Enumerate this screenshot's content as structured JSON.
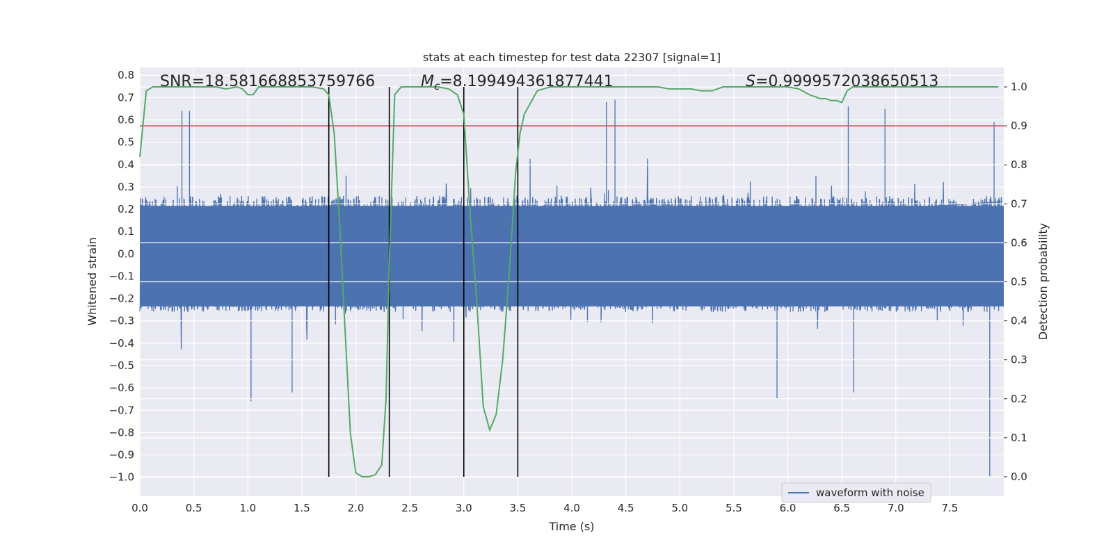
{
  "chart_data": {
    "type": "line",
    "title": "stats at each timestep for test data 22307 [signal=1]",
    "xlabel": "Time (s)",
    "ylabel_left": "Whitened strain",
    "ylabel_right": "Detection probability",
    "xlim": [
      0.0,
      8.0
    ],
    "ylim_left": [
      -1.085,
      0.835
    ],
    "ylim_right": [
      -0.05,
      1.05
    ],
    "x_ticks": [
      "0.0",
      "0.5",
      "1.0",
      "1.5",
      "2.0",
      "2.5",
      "3.0",
      "3.5",
      "4.0",
      "4.5",
      "5.0",
      "5.5",
      "6.0",
      "6.5",
      "7.0",
      "7.5"
    ],
    "y_left_ticks": [
      "0.8",
      "0.7",
      "0.6",
      "0.5",
      "0.4",
      "0.3",
      "0.2",
      "0.1",
      "0.0",
      "−0.1",
      "−0.2",
      "−0.3",
      "−0.4",
      "−0.5",
      "−0.6",
      "−0.7",
      "−0.8",
      "−0.9",
      "−1.0"
    ],
    "y_right_ticks": [
      "1.0",
      "0.9",
      "0.8",
      "0.7",
      "0.6",
      "0.5",
      "0.4",
      "0.3",
      "0.2",
      "0.1",
      "0.0"
    ],
    "grid": true,
    "legend_position": "bottom-right",
    "stats": {
      "snr_label": "SNR=",
      "snr_value": "18.581668853759766",
      "mc_symbol": "M",
      "mc_sub": "c",
      "mc_value": "=8.199494361877441",
      "s_symbol": "S",
      "s_value": "=0.9999572038650513"
    },
    "threshold_probability": 0.9,
    "vertical_markers_s": [
      1.75,
      2.31,
      3.0,
      3.5
    ],
    "series": [
      {
        "name": "waveform with noise",
        "color": "#4c72b0",
        "axis": "left",
        "description_type": "noisy strain, envelope approx ±0.25 with spikes",
        "extreme_points": [
          [
            0.39,
            0.64
          ],
          [
            0.46,
            0.64
          ],
          [
            1.03,
            -0.66
          ],
          [
            1.41,
            -0.62
          ],
          [
            4.32,
            0.68
          ],
          [
            4.4,
            0.69
          ],
          [
            6.56,
            0.66
          ],
          [
            6.9,
            0.65
          ],
          [
            6.61,
            -0.62
          ],
          [
            5.9,
            -0.65
          ],
          [
            7.87,
            -1.0
          ],
          [
            7.91,
            0.59
          ]
        ]
      },
      {
        "name": "Detection probability",
        "color": "#55a868",
        "axis": "right",
        "x": [
          0.0,
          0.06,
          0.12,
          0.2,
          0.3,
          0.4,
          0.5,
          0.6,
          0.7,
          0.8,
          0.9,
          0.95,
          1.0,
          1.05,
          1.1,
          1.2,
          1.3,
          1.4,
          1.5,
          1.6,
          1.7,
          1.75,
          1.8,
          1.85,
          1.9,
          1.95,
          2.0,
          2.06,
          2.12,
          2.18,
          2.24,
          2.28,
          2.31,
          2.36,
          2.42,
          2.48,
          2.56,
          2.66,
          2.76,
          2.86,
          2.94,
          3.0,
          3.06,
          3.12,
          3.18,
          3.24,
          3.3,
          3.36,
          3.42,
          3.48,
          3.52,
          3.56,
          3.62,
          3.68,
          3.74,
          3.8,
          3.9,
          4.0,
          4.2,
          4.4,
          4.6,
          4.8,
          4.9,
          5.0,
          5.1,
          5.2,
          5.3,
          5.4,
          5.5,
          5.7,
          5.9,
          6.0,
          6.1,
          6.2,
          6.25,
          6.3,
          6.35,
          6.4,
          6.45,
          6.5,
          6.55,
          6.6,
          6.7,
          6.8,
          7.0,
          7.2,
          7.4,
          7.6,
          7.8,
          7.95
        ],
        "y": [
          0.82,
          0.99,
          1.0,
          1.0,
          1.0,
          1.0,
          1.0,
          1.0,
          1.0,
          0.995,
          1.0,
          0.995,
          0.98,
          0.98,
          1.0,
          1.0,
          1.0,
          1.0,
          1.0,
          1.0,
          0.995,
          0.98,
          0.88,
          0.65,
          0.38,
          0.11,
          0.01,
          0.0,
          0.0,
          0.005,
          0.03,
          0.2,
          0.55,
          0.98,
          1.0,
          1.0,
          1.0,
          1.0,
          1.0,
          0.995,
          0.98,
          0.93,
          0.67,
          0.45,
          0.18,
          0.12,
          0.16,
          0.3,
          0.52,
          0.78,
          0.88,
          0.93,
          0.96,
          0.99,
          0.995,
          1.0,
          1.0,
          1.0,
          1.0,
          1.0,
          1.0,
          1.0,
          0.995,
          0.995,
          0.995,
          0.99,
          0.99,
          1.0,
          1.0,
          1.0,
          1.0,
          1.0,
          0.995,
          0.98,
          0.975,
          0.97,
          0.97,
          0.965,
          0.965,
          0.96,
          0.99,
          1.0,
          1.0,
          1.0,
          1.0,
          1.0,
          1.0,
          1.0,
          1.0,
          1.0
        ]
      }
    ]
  },
  "colors": {
    "plot_background": "#eaeaf2",
    "grid": "#ffffff",
    "threshold": "#c44e52",
    "markers": "#000000"
  }
}
